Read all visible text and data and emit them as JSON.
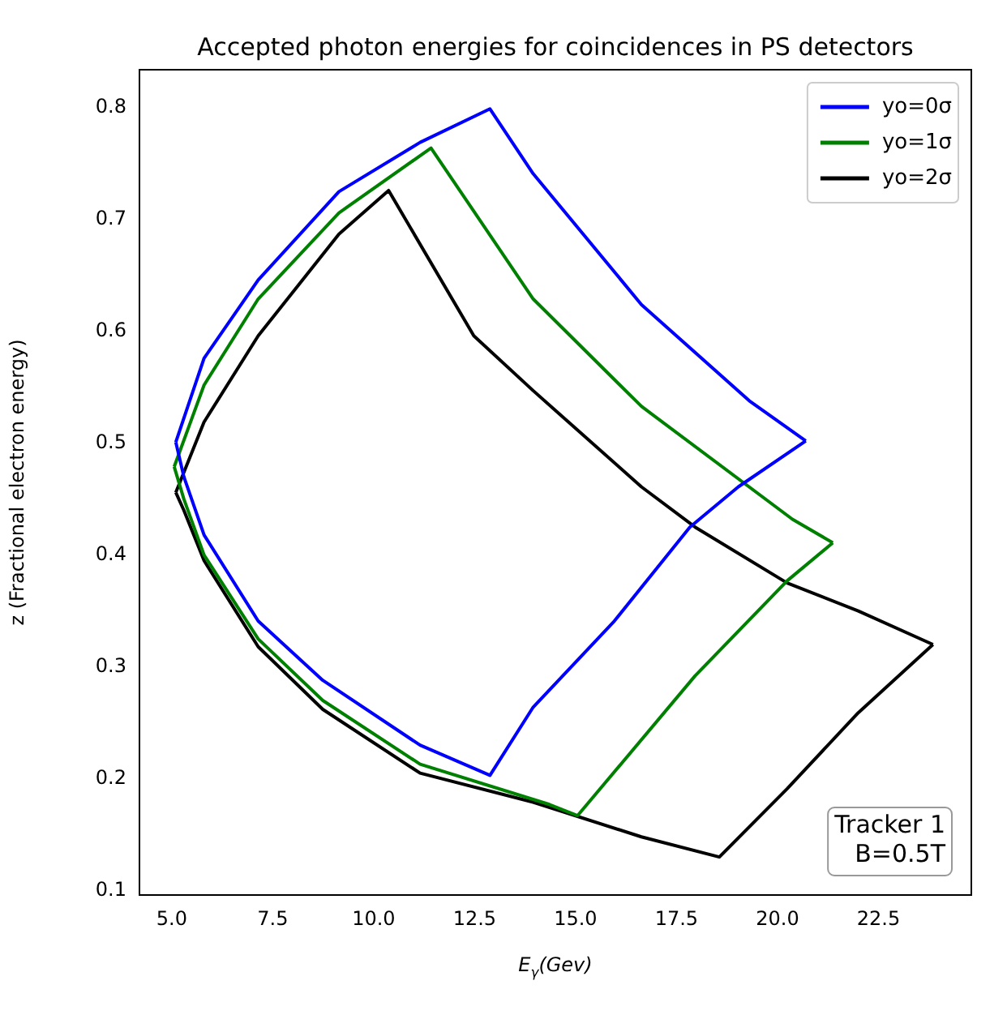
{
  "chart_data": {
    "type": "line",
    "title": "Accepted photon energies for coincidences in PS detectors",
    "xlabel": "E$_{γ}$(Gev)",
    "ylabel": "z (Fractional electron energy)",
    "xlim": [
      4.2,
      24.8
    ],
    "ylim": [
      0.096,
      0.834
    ],
    "xticks": [
      {
        "value": 5,
        "label": "5.0"
      },
      {
        "value": 7.5,
        "label": "7.5"
      },
      {
        "value": 10,
        "label": "10.0"
      },
      {
        "value": 12.5,
        "label": "12.5"
      },
      {
        "value": 15,
        "label": "15.0"
      },
      {
        "value": 17.5,
        "label": "17.5"
      },
      {
        "value": 20,
        "label": "20.0"
      },
      {
        "value": 22.5,
        "label": "22.5"
      }
    ],
    "yticks": [
      0.1,
      0.2,
      0.3,
      0.4,
      0.5,
      0.6,
      0.7,
      0.8
    ],
    "grid": false,
    "legend": "top right",
    "marker": "none",
    "line_style": "solid",
    "annotations": [
      "Tracker 1\nB=0.5T"
    ],
    "series": [
      {
        "name": "yo=0σ",
        "color": "#0000ff",
        "x": [
          5.1,
          5.8,
          7.14,
          9.14,
          11.15,
          12.88,
          13.95,
          16.63,
          19.3,
          20.7
        ],
        "values": [
          0.501,
          0.576,
          0.646,
          0.725,
          0.769,
          0.799,
          0.741,
          0.624,
          0.538,
          0.502
        ]
      },
      {
        "color": "#0000ff",
        "x": [
          5.1,
          5.3,
          5.8,
          7.14,
          8.74,
          11.15,
          12.88,
          13.95,
          15.96,
          17.83,
          19.03,
          20.7
        ],
        "values": [
          0.501,
          0.47,
          0.418,
          0.341,
          0.288,
          0.23,
          0.203,
          0.264,
          0.341,
          0.425,
          0.461,
          0.502
        ]
      },
      {
        "name": "yo=1σ",
        "color": "#008000",
        "x": [
          5.06,
          5.8,
          7.14,
          9.14,
          11.42,
          13.95,
          16.63,
          20.37,
          21.37
        ],
        "values": [
          0.479,
          0.552,
          0.629,
          0.706,
          0.764,
          0.629,
          0.533,
          0.432,
          0.411
        ]
      },
      {
        "color": "#008000",
        "x": [
          5.06,
          5.3,
          5.8,
          7.14,
          8.74,
          11.15,
          14.35,
          15.05,
          17.96,
          20.24,
          21.37
        ],
        "values": [
          0.479,
          0.45,
          0.4,
          0.325,
          0.27,
          0.213,
          0.177,
          0.167,
          0.292,
          0.377,
          0.411
        ]
      },
      {
        "name": "yo=2σ",
        "color": "#000000",
        "x": [
          5.1,
          5.8,
          7.14,
          9.14,
          10.37,
          12.48,
          13.95,
          16.63,
          17.96,
          20.24,
          22.0,
          23.85
        ],
        "values": [
          0.456,
          0.519,
          0.596,
          0.687,
          0.726,
          0.596,
          0.547,
          0.461,
          0.425,
          0.375,
          0.35,
          0.32
        ]
      },
      {
        "color": "#000000",
        "x": [
          5.1,
          5.3,
          5.8,
          7.14,
          8.74,
          11.15,
          13.95,
          16.63,
          18.56,
          20.24,
          22.0,
          23.85
        ],
        "values": [
          0.456,
          0.44,
          0.395,
          0.318,
          0.262,
          0.205,
          0.179,
          0.148,
          0.13,
          0.191,
          0.259,
          0.32
        ]
      }
    ]
  }
}
